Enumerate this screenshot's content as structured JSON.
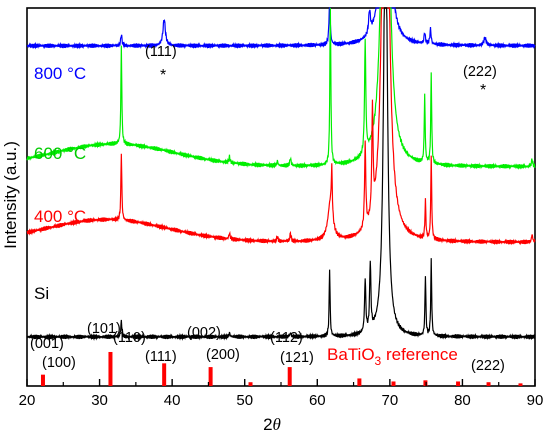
{
  "chart_data": {
    "type": "line",
    "title": "",
    "xlabel": "2",
    "xlabel_var": "θ",
    "ylabel": "Intensity (a.u.)",
    "xlim": [
      20,
      90
    ],
    "x_ticks": [
      20,
      30,
      40,
      50,
      60,
      70,
      80,
      90
    ],
    "x_tick_labels": [
      "20",
      "30",
      "40",
      "50",
      "60",
      "70",
      "80",
      "90"
    ],
    "y_tick_labels": false,
    "grid": false,
    "series": [
      {
        "name": "800 °C",
        "color": "#0000ff",
        "baseline": 0.9,
        "hump": {
          "center": 34,
          "width": 13,
          "height": 0.0
        },
        "peaks": [
          {
            "x": 33.0,
            "h": 0.03,
            "w": 0.2
          },
          {
            "x": 38.9,
            "h": 0.07,
            "w": 0.4
          },
          {
            "x": 61.7,
            "h": 0.12,
            "w": 0.2
          },
          {
            "x": 67.2,
            "h": 0.06,
            "w": 0.3
          },
          {
            "x": 69.4,
            "h": 1.5,
            "w": 0.7
          },
          {
            "x": 74.8,
            "h": 0.03,
            "w": 0.2
          },
          {
            "x": 75.6,
            "h": 0.04,
            "w": 0.2
          },
          {
            "x": 83.1,
            "h": 0.02,
            "w": 0.4
          }
        ]
      },
      {
        "name": "600 °C",
        "color": "#00ee00",
        "baseline": 0.58,
        "hump": {
          "center": 32,
          "width": 12,
          "height": 0.06
        },
        "peaks": [
          {
            "x": 33.0,
            "h": 0.26,
            "w": 0.15
          },
          {
            "x": 47.9,
            "h": 0.015,
            "w": 0.2
          },
          {
            "x": 54.5,
            "h": 0.012,
            "w": 0.2
          },
          {
            "x": 56.3,
            "h": 0.02,
            "w": 0.2
          },
          {
            "x": 61.8,
            "h": 0.46,
            "w": 0.15
          },
          {
            "x": 66.6,
            "h": 0.3,
            "w": 0.2
          },
          {
            "x": 69.4,
            "h": 1.6,
            "w": 0.9
          },
          {
            "x": 74.8,
            "h": 0.18,
            "w": 0.15
          },
          {
            "x": 75.7,
            "h": 0.24,
            "w": 0.15
          },
          {
            "x": 89.6,
            "h": 0.02,
            "w": 0.2
          }
        ]
      },
      {
        "name": "400 °C",
        "color": "#ff0000",
        "baseline": 0.38,
        "hump": {
          "center": 31,
          "width": 12,
          "height": 0.06
        },
        "peaks": [
          {
            "x": 33.0,
            "h": 0.18,
            "w": 0.15
          },
          {
            "x": 47.9,
            "h": 0.015,
            "w": 0.2
          },
          {
            "x": 54.5,
            "h": 0.012,
            "w": 0.2
          },
          {
            "x": 56.3,
            "h": 0.02,
            "w": 0.2
          },
          {
            "x": 61.8,
            "h": 0.1,
            "w": 0.8
          },
          {
            "x": 62.0,
            "h": 0.12,
            "w": 0.15
          },
          {
            "x": 66.6,
            "h": 0.22,
            "w": 0.2
          },
          {
            "x": 67.6,
            "h": 0.28,
            "w": 0.2
          },
          {
            "x": 69.4,
            "h": 1.6,
            "w": 0.9
          },
          {
            "x": 74.9,
            "h": 0.1,
            "w": 0.15
          },
          {
            "x": 75.7,
            "h": 0.22,
            "w": 0.15
          },
          {
            "x": 89.6,
            "h": 0.02,
            "w": 0.2
          }
        ]
      },
      {
        "name": "Si",
        "color": "#000000",
        "baseline": 0.13,
        "hump": {
          "center": 34,
          "width": 14,
          "height": 0.0
        },
        "peaks": [
          {
            "x": 33.0,
            "h": 0.04,
            "w": 0.2
          },
          {
            "x": 47.9,
            "h": 0.01,
            "w": 0.2
          },
          {
            "x": 56.3,
            "h": 0.01,
            "w": 0.2
          },
          {
            "x": 61.7,
            "h": 0.18,
            "w": 0.15
          },
          {
            "x": 66.6,
            "h": 0.14,
            "w": 0.2
          },
          {
            "x": 67.3,
            "h": 0.18,
            "w": 0.2
          },
          {
            "x": 69.4,
            "h": 1.2,
            "w": 0.6
          },
          {
            "x": 74.9,
            "h": 0.16,
            "w": 0.15
          },
          {
            "x": 75.7,
            "h": 0.2,
            "w": 0.15
          }
        ]
      }
    ],
    "reference": {
      "name_base": "BaTiO",
      "name_sub": "3",
      "name_suffix": " reference",
      "color": "#ff0000",
      "sticks": [
        {
          "x": 22.2,
          "h": 0.03
        },
        {
          "x": 31.5,
          "h": 0.09
        },
        {
          "x": 38.9,
          "h": 0.06
        },
        {
          "x": 45.3,
          "h": 0.05
        },
        {
          "x": 50.8,
          "h": 0.01
        },
        {
          "x": 56.2,
          "h": 0.05
        },
        {
          "x": 65.8,
          "h": 0.02
        },
        {
          "x": 70.5,
          "h": 0.012
        },
        {
          "x": 74.9,
          "h": 0.015
        },
        {
          "x": 79.4,
          "h": 0.012
        },
        {
          "x": 83.6,
          "h": 0.01
        },
        {
          "x": 88.0,
          "h": 0.007
        }
      ],
      "labels": [
        "(001)",
        "(100)",
        "(101)",
        "(110)",
        "(111)",
        "(002)",
        "(200)",
        "(112)",
        "(121)",
        "(222)"
      ]
    },
    "annotations": [
      {
        "text": "(111)",
        "marker": "*",
        "x": 39.0
      },
      {
        "text": "(222)",
        "marker": "*",
        "x": 83.1
      }
    ]
  }
}
